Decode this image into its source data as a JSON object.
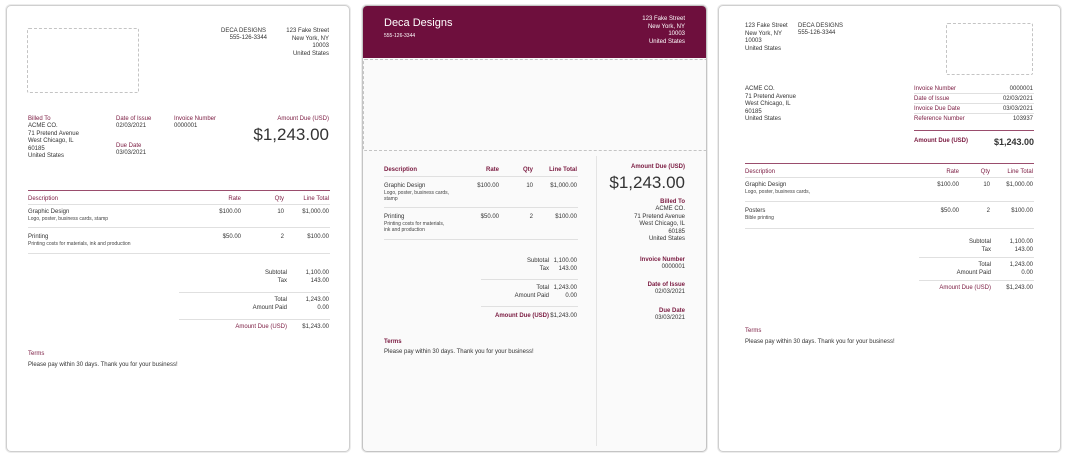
{
  "company": {
    "name_upper": "DECA DESIGNS",
    "name": "Deca Designs",
    "phone": "555-126-3344",
    "address": [
      "123 Fake Street",
      "New York, NY",
      "10003",
      "United States"
    ]
  },
  "client": {
    "heading": "Billed To",
    "name": "ACME CO.",
    "address": [
      "71 Pretend Avenue",
      "West Chicago, IL",
      "60185",
      "United States"
    ]
  },
  "invoice": {
    "date_issue_label": "Date of Issue",
    "date_issue": "02/03/2021",
    "due_label": "Due Date",
    "due_label_alt": "Invoice Due Date",
    "due_date": "03/03/2021",
    "number_label": "Invoice Number",
    "number": "0000001",
    "reference_label": "Reference Number",
    "reference": "103937",
    "amount_due_label": "Amount Due (USD)",
    "amount_due": "$1,243.00"
  },
  "columns": {
    "description": "Description",
    "rate": "Rate",
    "qty": "Qty",
    "line_total": "Line Total"
  },
  "items": [
    {
      "name": "Graphic Design",
      "desc": "Logo, poster, business cards, stamp",
      "desc_line1": "Logo, poster, business cards,",
      "desc_line2": "stamp",
      "rate": "$100.00",
      "qty": "10",
      "total": "$1,000.00"
    },
    {
      "name": "Printing",
      "desc": "Printing costs for materials, ink and production",
      "desc_line1": "Printing costs for materials,",
      "desc_line2": "ink and production",
      "rate": "$50.00",
      "qty": "2",
      "total": "$100.00"
    }
  ],
  "items_alt": {
    "name": "Posters",
    "desc": "Bible printing"
  },
  "totals": {
    "subtotal_label": "Subtotal",
    "subtotal": "1,100.00",
    "tax_label": "Tax",
    "tax": "143.00",
    "total_label": "Total",
    "total": "1,243.00",
    "paid_label": "Amount Paid",
    "paid": "0.00",
    "due_label": "Amount Due (USD)",
    "due": "$1,243.00"
  },
  "terms": {
    "heading": "Terms",
    "text": "Please pay within 30 days. Thank you for your business!"
  }
}
